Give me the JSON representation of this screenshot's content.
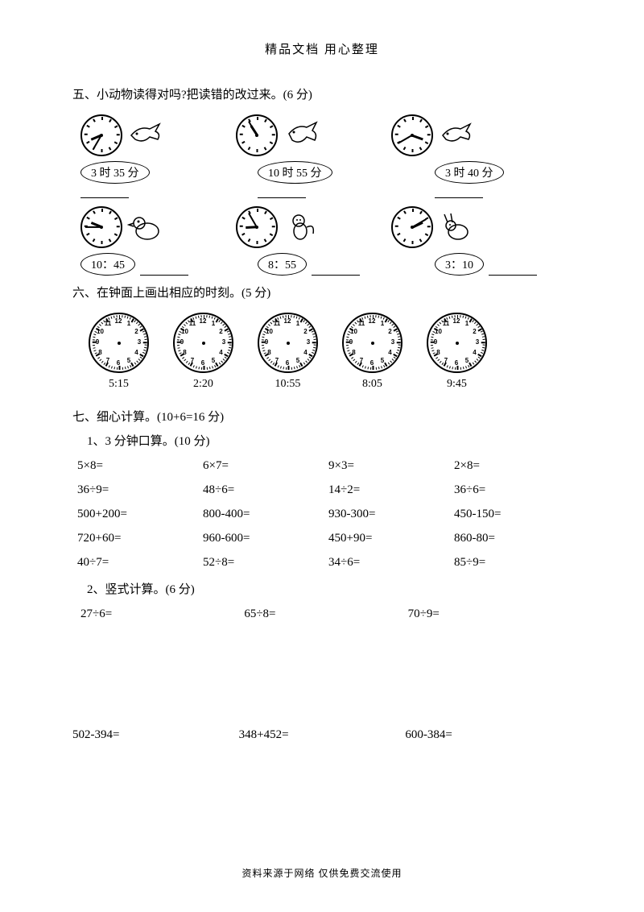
{
  "header": "精品文档  用心整理",
  "footer": "资料来源于网络  仅供免费交流使用",
  "section5": {
    "title": "五、小动物读得对吗?把读错的改过来。(6 分)",
    "row1": [
      {
        "label": "3 时 35 分",
        "hour_angle": 247,
        "min_angle": 210
      },
      {
        "label": "10 时 55 分",
        "hour_angle": 327,
        "min_angle": 330
      },
      {
        "label": "3 时 40 分",
        "hour_angle": 110,
        "min_angle": 240
      }
    ],
    "row2": [
      {
        "label": "10：45",
        "hour_angle": 292,
        "min_angle": 270
      },
      {
        "label": "8：55",
        "hour_angle": 267,
        "min_angle": 330
      },
      {
        "label": "3：10",
        "hour_angle": 65,
        "min_angle": 60
      }
    ]
  },
  "section6": {
    "title": "六、在钟面上画出相应的时刻。(5 分)",
    "times": [
      "5:15",
      "2:20",
      "10:55",
      "8:05",
      "9:45"
    ]
  },
  "section7": {
    "title": "七、细心计算。(10+6=16 分)",
    "sub1_title": "1、3 分钟口算。(10 分)",
    "mental": [
      "5×8=",
      "6×7=",
      "9×3=",
      "2×8=",
      "36÷9=",
      "48÷6=",
      "14÷2=",
      "36÷6=",
      "500+200=",
      "800-400=",
      "930-300=",
      "450-150=",
      "720+60=",
      "960-600=",
      "450+90=",
      "860-80=",
      "40÷7=",
      "52÷8=",
      "34÷6=",
      "85÷9="
    ],
    "sub2_title": "2、竖式计算。(6 分)",
    "vertical1": [
      "27÷6=",
      "65÷8=",
      "70÷9="
    ],
    "vertical2": [
      "502-394=",
      "348+452=",
      "600-384="
    ]
  },
  "clock_numbers": [
    "12",
    "1",
    "2",
    "3",
    "4",
    "5",
    "6",
    "7",
    "8",
    "9",
    "10",
    "11"
  ],
  "colors": {
    "bg": "#ffffff",
    "text": "#000000"
  }
}
